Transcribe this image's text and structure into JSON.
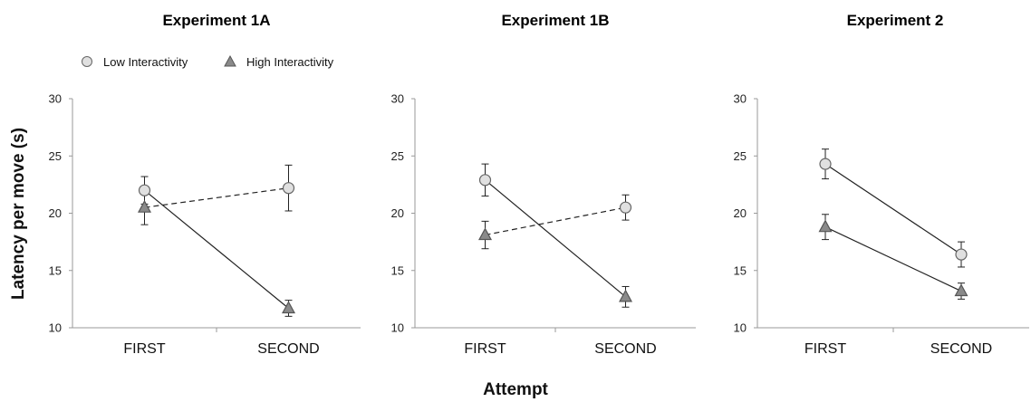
{
  "figure": {
    "ylabel": "Latency per move (s)",
    "xlabel": "Attempt"
  },
  "legend": {
    "items": [
      {
        "name": "Low Interactivity",
        "marker": "circle",
        "fill": "#e0e0e0"
      },
      {
        "name": "High Interactivity",
        "marker": "triangle",
        "fill": "#8a8a8a"
      }
    ]
  },
  "colors": {
    "axis": "#999999",
    "line": "#222222",
    "low_fill": "#e0e0e0",
    "high_fill": "#8a8a8a",
    "marker_stroke": "#666666"
  },
  "chart_data": [
    {
      "type": "line",
      "title": "Experiment 1A",
      "categories": [
        "FIRST",
        "SECOND"
      ],
      "ylim": [
        10,
        30
      ],
      "yticks": [
        10,
        15,
        20,
        25,
        30
      ],
      "series": [
        {
          "name": "Low Interactivity",
          "marker": "circle",
          "values": [
            22.0,
            22.2
          ],
          "err": [
            1.2,
            2.0
          ],
          "dashed": [
            false,
            true
          ]
        },
        {
          "name": "High Interactivity",
          "marker": "triangle",
          "values": [
            20.5,
            11.7
          ],
          "err": [
            1.5,
            0.7
          ],
          "dashed": [
            true,
            false
          ]
        }
      ],
      "connectors": [
        {
          "from": [
            "Low Interactivity",
            0
          ],
          "to": [
            "High Interactivity",
            1
          ],
          "style": "solid"
        },
        {
          "from": [
            "High Interactivity",
            0
          ],
          "to": [
            "Low Interactivity",
            1
          ],
          "style": "dashed"
        }
      ]
    },
    {
      "type": "line",
      "title": "Experiment 1B",
      "categories": [
        "FIRST",
        "SECOND"
      ],
      "ylim": [
        10,
        30
      ],
      "yticks": [
        10,
        15,
        20,
        25,
        30
      ],
      "series": [
        {
          "name": "Low Interactivity",
          "marker": "circle",
          "values": [
            22.9,
            20.5
          ],
          "err": [
            1.4,
            1.1
          ]
        },
        {
          "name": "High Interactivity",
          "marker": "triangle",
          "values": [
            18.1,
            12.7
          ],
          "err": [
            1.2,
            0.9
          ]
        }
      ],
      "connectors": [
        {
          "from": [
            "Low Interactivity",
            0
          ],
          "to": [
            "High Interactivity",
            1
          ],
          "style": "solid"
        },
        {
          "from": [
            "High Interactivity",
            0
          ],
          "to": [
            "Low Interactivity",
            1
          ],
          "style": "dashed"
        }
      ]
    },
    {
      "type": "line",
      "title": "Experiment 2",
      "categories": [
        "FIRST",
        "SECOND"
      ],
      "ylim": [
        10,
        30
      ],
      "yticks": [
        10,
        15,
        20,
        25,
        30
      ],
      "series": [
        {
          "name": "Low Interactivity",
          "marker": "circle",
          "values": [
            24.3,
            16.4
          ],
          "err": [
            1.3,
            1.1
          ]
        },
        {
          "name": "High Interactivity",
          "marker": "triangle",
          "values": [
            18.8,
            13.2
          ],
          "err": [
            1.1,
            0.7
          ]
        }
      ],
      "connectors": [
        {
          "from": [
            "Low Interactivity",
            0
          ],
          "to": [
            "Low Interactivity",
            1
          ],
          "style": "solid"
        },
        {
          "from": [
            "High Interactivity",
            0
          ],
          "to": [
            "High Interactivity",
            1
          ],
          "style": "solid"
        }
      ]
    }
  ]
}
